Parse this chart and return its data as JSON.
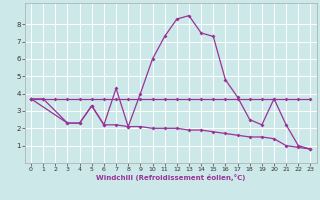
{
  "xlabel": "Windchill (Refroidissement éolien,°C)",
  "bg_color": "#cce8e8",
  "grid_color": "#ffffff",
  "line_color": "#993399",
  "xlim": [
    -0.5,
    23.5
  ],
  "ylim": [
    0,
    9.2
  ],
  "xticks": [
    0,
    1,
    2,
    3,
    4,
    5,
    6,
    7,
    8,
    9,
    10,
    11,
    12,
    13,
    14,
    15,
    16,
    17,
    18,
    19,
    20,
    21,
    22,
    23
  ],
  "yticks": [
    1,
    2,
    3,
    4,
    5,
    6,
    7,
    8
  ],
  "series1_x": [
    0,
    1,
    2,
    3,
    4,
    5,
    6,
    7,
    8,
    9,
    10,
    11,
    12,
    13,
    14,
    15,
    16,
    17,
    18,
    19,
    20,
    21,
    22,
    23
  ],
  "series1_y": [
    3.7,
    3.7,
    3.7,
    3.7,
    3.7,
    3.7,
    3.7,
    3.7,
    3.7,
    3.7,
    3.7,
    3.7,
    3.7,
    3.7,
    3.7,
    3.7,
    3.7,
    3.7,
    3.7,
    3.7,
    3.7,
    3.7,
    3.7,
    3.7
  ],
  "series2_x": [
    0,
    3,
    4,
    5,
    6,
    7,
    8,
    9,
    10,
    11,
    12,
    13,
    14,
    15,
    16,
    17,
    18,
    19,
    20,
    21,
    22,
    23
  ],
  "series2_y": [
    3.7,
    2.3,
    2.3,
    3.3,
    2.2,
    2.2,
    2.1,
    2.1,
    2.0,
    2.0,
    2.0,
    1.9,
    1.9,
    1.8,
    1.7,
    1.6,
    1.5,
    1.5,
    1.4,
    1.0,
    0.9,
    0.8
  ],
  "series3_x": [
    0,
    1,
    3,
    4,
    5,
    6,
    7,
    8,
    9,
    10,
    11,
    12,
    13,
    14,
    15,
    16,
    17,
    18,
    19,
    20,
    21,
    22,
    23
  ],
  "series3_y": [
    3.7,
    3.7,
    2.3,
    2.3,
    3.3,
    2.2,
    4.3,
    2.1,
    4.0,
    6.0,
    7.3,
    8.3,
    8.5,
    7.5,
    7.3,
    4.8,
    3.8,
    2.5,
    2.2,
    3.7,
    2.2,
    1.0,
    0.8
  ]
}
